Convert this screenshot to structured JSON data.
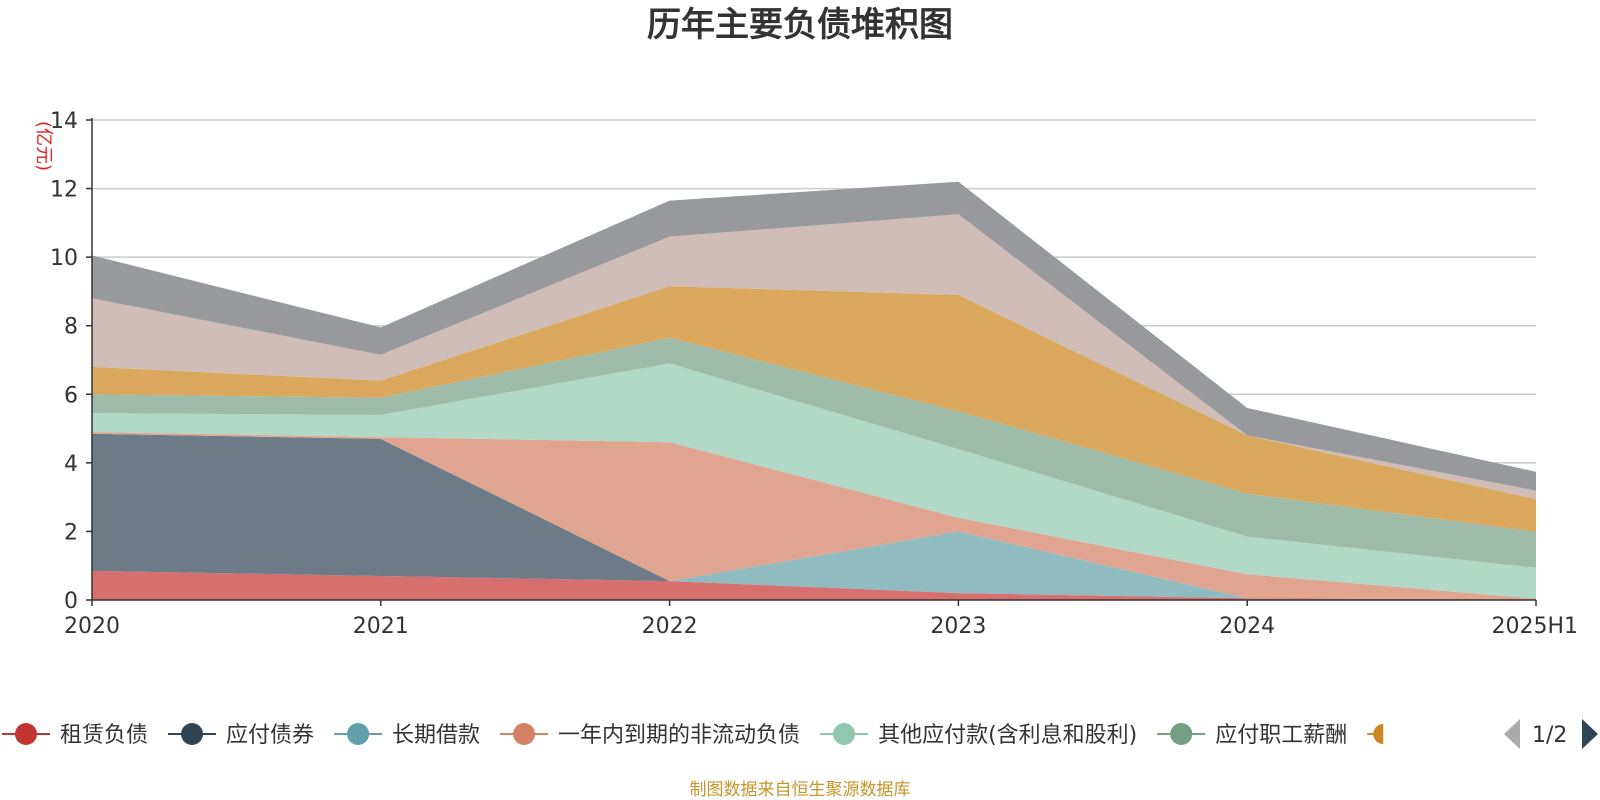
{
  "chart_data": {
    "type": "area",
    "stacked": true,
    "title": "历年主要负债堆积图",
    "unit_label": "(亿元)",
    "x": [
      "2020",
      "2021",
      "2022",
      "2023",
      "2024",
      "2025H1"
    ],
    "ylim": [
      0,
      14
    ],
    "yticks": [
      0,
      2,
      4,
      6,
      8,
      10,
      12,
      14
    ],
    "grid": true,
    "legend_position": "bottom",
    "series": [
      {
        "name": "租赁负债",
        "color": "#c23531",
        "area_color": "#d66f6d",
        "values": [
          0.85,
          0.7,
          0.55,
          0.2,
          0.05,
          0.02
        ]
      },
      {
        "name": "应付债券",
        "color": "#2f4554",
        "area_color": "#6c7b87",
        "values": [
          4.0,
          4.0,
          0.0,
          0.0,
          0.0,
          0.0
        ]
      },
      {
        "name": "长期借款",
        "color": "#61a0a8",
        "area_color": "#90bbc0",
        "values": [
          0.0,
          0.0,
          0.0,
          1.8,
          0.0,
          0.0
        ]
      },
      {
        "name": "一年内到期的非流动负债",
        "color": "#d48265",
        "area_color": "#e0a590",
        "values": [
          0.05,
          0.05,
          4.05,
          0.4,
          0.7,
          0.02
        ]
      },
      {
        "name": "其他应付款(含利息和股利)",
        "color": "#91c7ae",
        "area_color": "#b2d8c7",
        "values": [
          0.55,
          0.65,
          2.3,
          2.0,
          1.1,
          0.9
        ]
      },
      {
        "name": "应付职工薪酬",
        "color": "#749f83",
        "area_color": "#9ebaa8",
        "values": [
          0.55,
          0.5,
          0.75,
          1.1,
          1.25,
          1.05
        ]
      },
      {
        "name": "",
        "color": "#ca8622",
        "area_color": "#d9a85d",
        "values": [
          0.8,
          0.5,
          1.5,
          3.4,
          1.7,
          0.95
        ]
      },
      {
        "name": "",
        "color": "#bda29a",
        "area_color": "#d0bdb7",
        "values": [
          2.0,
          0.75,
          1.45,
          2.35,
          0.0,
          0.25
        ]
      },
      {
        "name": "",
        "color": "#6e7074",
        "area_color": "#98999c",
        "values": [
          1.25,
          0.8,
          1.05,
          0.95,
          0.8,
          0.55
        ]
      }
    ],
    "legend": {
      "visible_items": [
        "租赁负债",
        "应付债券",
        "长期借款",
        "一年内到期的非流动负债",
        "其他应付款(含利息和股利)",
        "应付职工薪酬"
      ],
      "page_label": "1/2"
    },
    "source_note": "制图数据来自恒生聚源数据库"
  }
}
